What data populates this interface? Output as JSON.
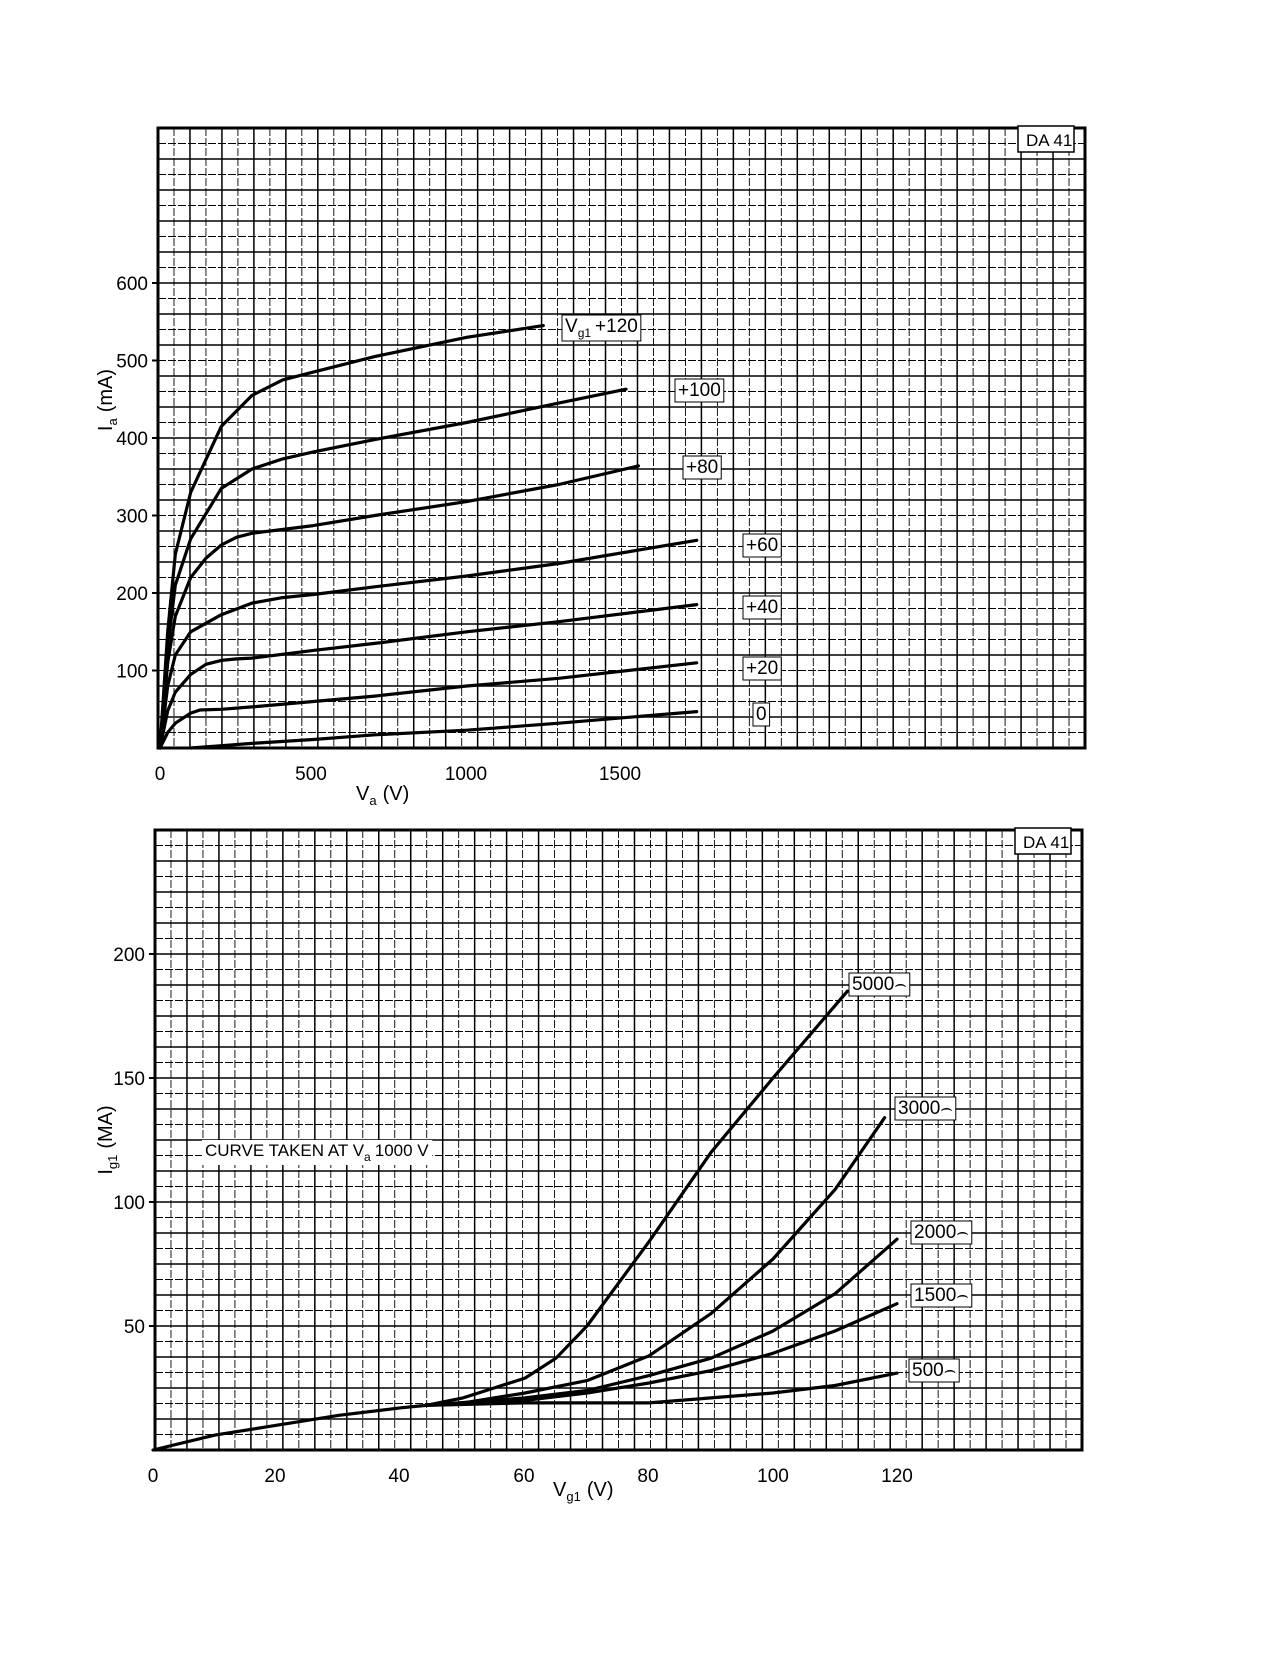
{
  "chart_data": [
    {
      "type": "line",
      "tag": "DA 41",
      "xlabel": "V",
      "xlabel_sub": "a",
      "xlabel_unit": "(V)",
      "ylabel": "I",
      "ylabel_sub": "a",
      "ylabel_unit": "(mA)",
      "xlim": [
        0,
        3000
      ],
      "ylim": [
        0,
        800
      ],
      "x_tick_labels": [
        "0",
        "500",
        "1000",
        "1500"
      ],
      "x_tick_values": [
        0,
        500,
        1000,
        1500
      ],
      "y_tick_labels": [
        "100",
        "200",
        "300",
        "400",
        "500",
        "600"
      ],
      "y_tick_values": [
        100,
        200,
        300,
        400,
        500,
        600
      ],
      "grid": true,
      "series": [
        {
          "name": "V",
          "name_sub": "g1",
          "name_tail": "+120",
          "x": [
            0,
            25,
            50,
            100,
            200,
            300,
            400,
            500,
            700,
            1000,
            1250
          ],
          "y": [
            0,
            150,
            250,
            330,
            415,
            455,
            475,
            485,
            505,
            530,
            545
          ]
        },
        {
          "name": "+100",
          "x": [
            0,
            25,
            50,
            100,
            200,
            300,
            400,
            500,
            700,
            1000,
            1300,
            1520
          ],
          "y": [
            0,
            130,
            210,
            270,
            335,
            360,
            373,
            382,
            398,
            420,
            445,
            463
          ]
        },
        {
          "name": "+80",
          "x": [
            0,
            25,
            50,
            100,
            150,
            200,
            250,
            300,
            500,
            700,
            1000,
            1300,
            1560
          ],
          "y": [
            0,
            110,
            170,
            220,
            245,
            262,
            272,
            277,
            287,
            300,
            318,
            340,
            364
          ]
        },
        {
          "name": "+60",
          "x": [
            0,
            25,
            50,
            100,
            200,
            300,
            400,
            500,
            700,
            1000,
            1300,
            1750
          ],
          "y": [
            0,
            80,
            120,
            150,
            172,
            187,
            194,
            198,
            208,
            222,
            238,
            268
          ]
        },
        {
          "name": "+40",
          "x": [
            0,
            25,
            50,
            100,
            150,
            200,
            250,
            300,
            500,
            700,
            1000,
            1300,
            1750
          ],
          "y": [
            0,
            48,
            72,
            95,
            108,
            113,
            115,
            116,
            126,
            135,
            150,
            163,
            185
          ]
        },
        {
          "name": "+20",
          "x": [
            0,
            25,
            50,
            100,
            130,
            200,
            300,
            500,
            700,
            1000,
            1300,
            1750
          ],
          "y": [
            0,
            20,
            32,
            45,
            49,
            50,
            53,
            60,
            67,
            80,
            90,
            110
          ]
        },
        {
          "name": "0",
          "x": [
            100,
            200,
            300,
            500,
            700,
            1000,
            1300,
            1750
          ],
          "y": [
            0,
            3,
            6,
            11,
            17,
            23,
            32,
            47
          ]
        }
      ]
    },
    {
      "type": "line",
      "tag": "DA 41",
      "xlabel": "V",
      "xlabel_sub": "g1",
      "xlabel_unit": "(V)",
      "ylabel": "I",
      "ylabel_sub": "g1",
      "ylabel_unit": "(MA)",
      "xlim": [
        0,
        150
      ],
      "ylim": [
        0,
        250
      ],
      "x_tick_labels": [
        "0",
        "20",
        "40",
        "60",
        "80",
        "100",
        "120"
      ],
      "x_tick_values": [
        0,
        20,
        40,
        60,
        80,
        100,
        120
      ],
      "y_tick_labels": [
        "50",
        "100",
        "150",
        "200"
      ],
      "y_tick_values": [
        50,
        100,
        150,
        200
      ],
      "grid": true,
      "annotation": {
        "text": "CURVE  TAKEN  AT  V",
        "sub": "a",
        "tail": "1000 V"
      },
      "series": [
        {
          "name": "5000⌢",
          "x": [
            0,
            10,
            20,
            30,
            40,
            44,
            50,
            55,
            60,
            65,
            70,
            80,
            90,
            100,
            112
          ],
          "y": [
            0,
            6,
            10,
            14,
            17,
            18,
            21,
            25,
            29,
            37,
            50,
            84,
            120,
            150,
            185
          ]
        },
        {
          "name": "3000⌢",
          "x": [
            44,
            50,
            60,
            70,
            80,
            90,
            100,
            110,
            118
          ],
          "y": [
            18,
            19,
            23,
            28,
            38,
            55,
            77,
            105,
            134
          ]
        },
        {
          "name": "2000⌢",
          "x": [
            44,
            60,
            70,
            80,
            90,
            100,
            110,
            120
          ],
          "y": [
            18,
            21,
            24,
            30,
            37,
            48,
            63,
            85
          ]
        },
        {
          "name": "1500⌢",
          "x": [
            44,
            60,
            70,
            80,
            90,
            100,
            110,
            120
          ],
          "y": [
            18,
            20,
            23,
            27,
            32,
            39,
            48,
            59
          ]
        },
        {
          "name": "500⌢",
          "x": [
            44,
            60,
            70,
            80,
            85,
            90,
            100,
            110,
            120
          ],
          "y": [
            18,
            19,
            19,
            19,
            20,
            21,
            23,
            26,
            31
          ]
        }
      ]
    }
  ]
}
